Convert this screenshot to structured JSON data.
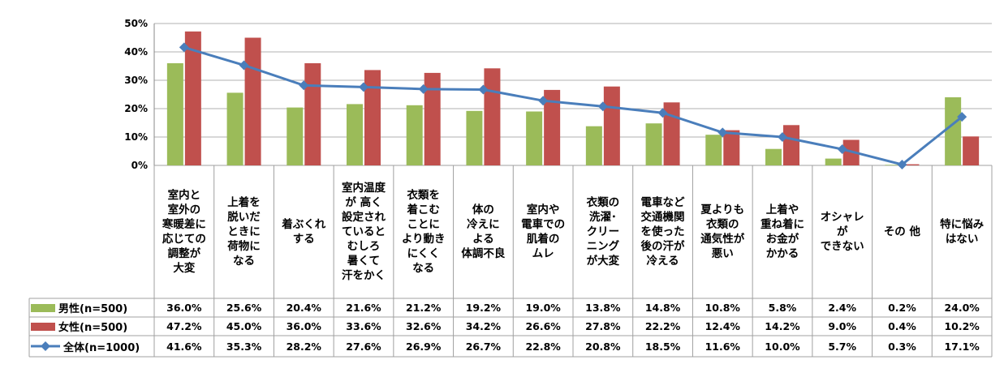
{
  "chart_data": {
    "type": "bar",
    "title": "",
    "xlabel": "",
    "ylabel": "",
    "ylim": [
      0,
      50
    ],
    "yticks": [
      "0%",
      "10%",
      "20%",
      "30%",
      "40%",
      "50%"
    ],
    "grid": true,
    "legend_placement": "table-left",
    "categories": [
      "室内と\n室外の\n寒暖差に\n応じての\n調整が\n大変",
      "上着を\n脱いだ\nときに\n荷物に\nなる",
      "着ぶくれ\nする",
      "室内温度\nが 高く\n設定され\nていると\nむしろ\n暑くて\n汗をかく",
      "衣類を\n着こむ\nことに\nより動き\nにくく\nなる",
      "体の\n冷えに\nよる\n体調不良",
      "室内や\n電車での\n肌着の\nムレ",
      "衣類の\n洗濯･\nクリー\nニング\nが大変",
      "電車など\n交通機関\nを使った\n後の汗が\n冷える",
      "夏よりも\n衣類の\n通気性が\n悪い",
      "上着や\n重ね着に\nお金が\nかかる",
      "オシャレ\nが\nできない",
      "その 他",
      "特に悩み\nはない"
    ],
    "series": [
      {
        "name": "男性(n=500)",
        "type": "bar",
        "color": "#9bbb59",
        "values": [
          36.0,
          25.6,
          20.4,
          21.6,
          21.2,
          19.2,
          19.0,
          13.8,
          14.8,
          10.8,
          5.8,
          2.4,
          0.2,
          24.0
        ],
        "labels": [
          "36.0%",
          "25.6%",
          "20.4%",
          "21.6%",
          "21.2%",
          "19.2%",
          "19.0%",
          "13.8%",
          "14.8%",
          "10.8%",
          "5.8%",
          "2.4%",
          "0.2%",
          "24.0%"
        ]
      },
      {
        "name": "女性(n=500)",
        "type": "bar",
        "color": "#c0504d",
        "values": [
          47.2,
          45.0,
          36.0,
          33.6,
          32.6,
          34.2,
          26.6,
          27.8,
          22.2,
          12.4,
          14.2,
          9.0,
          0.4,
          10.2
        ],
        "labels": [
          "47.2%",
          "45.0%",
          "36.0%",
          "33.6%",
          "32.6%",
          "34.2%",
          "26.6%",
          "27.8%",
          "22.2%",
          "12.4%",
          "14.2%",
          "9.0%",
          "0.4%",
          "10.2%"
        ]
      },
      {
        "name": "全体(n=1000)",
        "type": "line",
        "color": "#4a7ebb",
        "values": [
          41.6,
          35.3,
          28.2,
          27.6,
          26.9,
          26.7,
          22.8,
          20.8,
          18.5,
          11.6,
          10.0,
          5.7,
          0.3,
          17.1
        ],
        "labels": [
          "41.6%",
          "35.3%",
          "28.2%",
          "27.6%",
          "26.9%",
          "26.7%",
          "22.8%",
          "20.8%",
          "18.5%",
          "11.6%",
          "10.0%",
          "5.7%",
          "0.3%",
          "17.1%"
        ]
      }
    ]
  }
}
